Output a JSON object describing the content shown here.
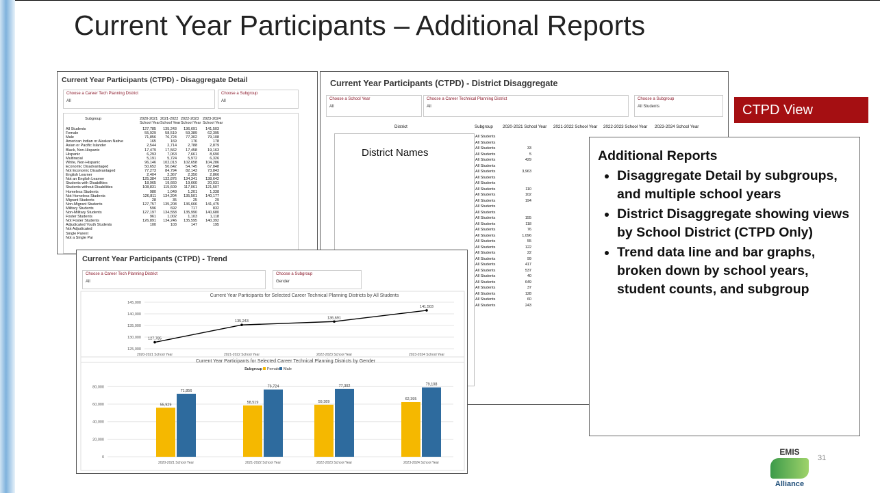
{
  "title": "Current Year Participants – Additional Reports",
  "detail": {
    "title": "Current Year Participants (CTPD) - Disaggregate Detail",
    "filters": [
      {
        "label": "Choose a Career Tech Planning District",
        "value": "All"
      },
      {
        "label": "Choose a Subgroup",
        "value": "All"
      }
    ],
    "columns": [
      "Subgroup",
      "2020-2021 School Year",
      "2021-2022 School Year",
      "2022-2023 School Year",
      "2023-2024 School Year"
    ],
    "rows": [
      [
        "All Students",
        "127,785",
        "135,243",
        "136,691",
        "141,503"
      ],
      [
        "Female",
        "55,929",
        "58,519",
        "59,389",
        "62,395"
      ],
      [
        "Male",
        "71,856",
        "76,724",
        "77,302",
        "79,108"
      ],
      [
        "American Indian or Alaskan Native",
        "165",
        "169",
        "176",
        "178"
      ],
      [
        "Asian or Pacific Islander",
        "2,544",
        "2,714",
        "2,788",
        "2,879"
      ],
      [
        "Black, Non-Hispanic",
        "17,479",
        "17,562",
        "17,458",
        "19,163"
      ],
      [
        "Hispanic",
        "6,293",
        "7,063",
        "7,661",
        "8,690"
      ],
      [
        "Multiracial",
        "5,191",
        "5,724",
        "5,972",
        "6,326"
      ],
      [
        "White, Non-Hispanic",
        "96,146",
        "102,013",
        "102,658",
        "104,286"
      ],
      [
        "Economic Disadvantaged",
        "50,652",
        "50,642",
        "54,745",
        "67,848"
      ],
      [
        "Not Economic Disadvantaged",
        "77,273",
        "84,794",
        "82,143",
        "73,843"
      ],
      [
        "English Learner",
        "2,404",
        "2,367",
        "2,350",
        "2,866"
      ],
      [
        "Not an English Learner",
        "125,384",
        "132,876",
        "134,341",
        "138,642"
      ],
      [
        "Students with Disabilities",
        "18,965",
        "19,660",
        "19,660",
        "20,031"
      ],
      [
        "Students without Disabilities",
        "108,831",
        "115,609",
        "117,061",
        "121,507"
      ],
      [
        "Homeless Students",
        "980",
        "1,049",
        "1,201",
        "1,338"
      ],
      [
        "Not Homeless Students",
        "126,811",
        "134,204",
        "135,501",
        "140,177"
      ],
      [
        "Migrant Students",
        "28",
        "35",
        "25",
        "29"
      ],
      [
        "Non-Migrant Students",
        "127,757",
        "135,208",
        "136,666",
        "141,475"
      ],
      [
        "Military Students",
        "596",
        "692",
        "717",
        "832"
      ],
      [
        "Non-Military Students",
        "127,197",
        "134,558",
        "135,990",
        "140,680"
      ],
      [
        "Foster Students",
        "961",
        "1,002",
        "1,103",
        "1,118"
      ],
      [
        "Not Foster Students",
        "126,891",
        "134,246",
        "135,595",
        "140,392"
      ],
      [
        "Adjudicated Youth Students",
        "100",
        "103",
        "147",
        "195"
      ],
      [
        "Not Adjudicated"
      ],
      [
        "Single Parent"
      ],
      [
        "Not a Single Par"
      ]
    ]
  },
  "district": {
    "title": "Current Year Participants (CTPD) - District Disaggregate",
    "filters": [
      {
        "label": "Choose a School Year",
        "value": "All"
      },
      {
        "label": "Choose a Career Technical Planning District",
        "value": "All"
      },
      {
        "label": "Choose a Subgroup",
        "value": "All Students"
      }
    ],
    "columns": [
      "District",
      "Subgroup",
      "2020-2021 School Year",
      "2021-2022 School Year",
      "2022-2023 School Year",
      "2023-2024 School Year"
    ],
    "overlay": "District Names",
    "rows": [
      [
        "All Students",
        null
      ],
      [
        "All Students",
        null
      ],
      [
        "All Students",
        "33"
      ],
      [
        "All Students",
        "5"
      ],
      [
        "All Students",
        "429"
      ],
      [
        "All Students",
        null
      ],
      [
        "All Students",
        "3,963"
      ],
      [
        "All Students",
        null
      ],
      [
        "All Students",
        null
      ],
      [
        "All Students",
        "110"
      ],
      [
        "All Students",
        "102"
      ],
      [
        "All Students",
        "194"
      ],
      [
        "All Students",
        null
      ],
      [
        "All Students",
        null
      ],
      [
        "All Students",
        "155"
      ],
      [
        "All Students",
        "118"
      ],
      [
        "All Students",
        "76"
      ],
      [
        "All Students",
        "1,096"
      ],
      [
        "All Students",
        "55"
      ],
      [
        "All Students",
        "122"
      ],
      [
        "All Students",
        "22"
      ],
      [
        "All Students",
        "99"
      ],
      [
        "All Students",
        "417"
      ],
      [
        "All Students",
        "537"
      ],
      [
        "All Students",
        "40"
      ],
      [
        "All Students",
        "649"
      ],
      [
        "All Students",
        "37"
      ],
      [
        "All Students",
        "128"
      ],
      [
        "All Students",
        "60"
      ],
      [
        "All Students",
        "243"
      ]
    ]
  },
  "ctpd_view": "CTPD View",
  "notes": {
    "heading": "Additional Reports",
    "bullets": [
      "Disaggregate Detail by subgroups, and multiple school years",
      "District Disaggregate showing views by School District   (CTPD Only)",
      "Trend data line and bar graphs, broken down by school years, student counts, and subgroup"
    ]
  },
  "trend": {
    "title": "Current Year Participants (CTPD) - Trend",
    "filters": [
      {
        "label": "Choose a Career Tech Planning District",
        "value": "All"
      },
      {
        "label": "Choose a Subgroup",
        "value": "Gender"
      }
    ]
  },
  "chart_data": [
    {
      "type": "line",
      "title": "Current Year Participants for Selected Career Technical Planning Districts by All Students",
      "categories": [
        "2020-2021 School Year",
        "2021-2022 School Year",
        "2022-2023 School Year",
        "2023-2024 School Year"
      ],
      "values": [
        127785,
        135243,
        136691,
        141503
      ],
      "value_labels": [
        "127,785",
        "135,243",
        "136,691",
        "141,503"
      ],
      "color": "#000000",
      "ylim": [
        125000,
        145000
      ],
      "yticks": [
        {
          "value": 125000,
          "label": "125,000"
        },
        {
          "value": 130000,
          "label": "130,000"
        },
        {
          "value": 135000,
          "label": "135,000"
        },
        {
          "value": 140000,
          "label": "140,000"
        },
        {
          "value": 145000,
          "label": "145,000"
        }
      ],
      "grid": true
    },
    {
      "type": "bar",
      "title": "Current Year Participants for Selected Career Technical Planning Districts by Gender",
      "legend_title": "Subgroup",
      "categories": [
        "2020-2021 School Year",
        "2021-2022 School Year",
        "2022-2023 School Year",
        "2023-2024 School Year"
      ],
      "series": [
        {
          "name": "Female",
          "color": "#f5b800",
          "values": [
            55929,
            58519,
            59389,
            62395
          ],
          "value_labels": [
            "55,929",
            "58,519",
            "59,389",
            "62,395"
          ]
        },
        {
          "name": "Male",
          "color": "#2e6b9e",
          "values": [
            71856,
            76724,
            77302,
            79108
          ],
          "value_labels": [
            "71,856",
            "76,724",
            "77,302",
            "79,108"
          ]
        }
      ],
      "ylim": [
        0,
        85000
      ],
      "yticks": [
        0,
        {
          "value": 20000,
          "label": "20,000"
        },
        {
          "value": 40000,
          "label": "40,000"
        },
        {
          "value": 60000,
          "label": "60,000"
        },
        {
          "value": 80000,
          "label": "80,000"
        }
      ],
      "grid": true
    }
  ],
  "logo": {
    "top": "EMIS",
    "bottom": "Alliance"
  },
  "page_number": "31"
}
